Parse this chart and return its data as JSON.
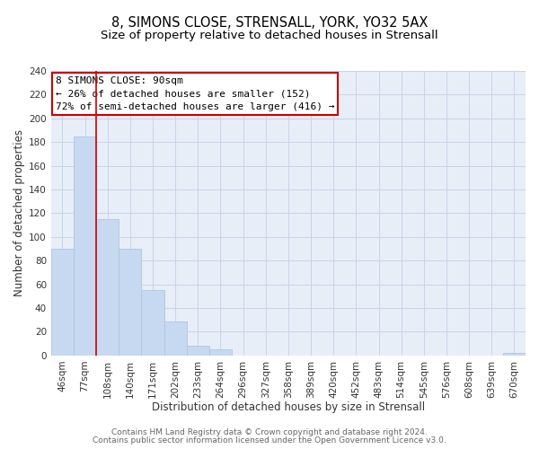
{
  "title": "8, SIMONS CLOSE, STRENSALL, YORK, YO32 5AX",
  "subtitle": "Size of property relative to detached houses in Strensall",
  "xlabel": "Distribution of detached houses by size in Strensall",
  "ylabel": "Number of detached properties",
  "categories": [
    "46sqm",
    "77sqm",
    "108sqm",
    "140sqm",
    "171sqm",
    "202sqm",
    "233sqm",
    "264sqm",
    "296sqm",
    "327sqm",
    "358sqm",
    "389sqm",
    "420sqm",
    "452sqm",
    "483sqm",
    "514sqm",
    "545sqm",
    "576sqm",
    "608sqm",
    "639sqm",
    "670sqm"
  ],
  "values": [
    90,
    185,
    115,
    90,
    55,
    29,
    8,
    5,
    0,
    0,
    0,
    0,
    0,
    0,
    0,
    0,
    0,
    0,
    0,
    0,
    2
  ],
  "bar_color": "#c6d9f0",
  "bar_edge_color": "#aec6e0",
  "vline_color": "#cc0000",
  "vline_x_index": 1.5,
  "ylim": [
    0,
    240
  ],
  "yticks": [
    0,
    20,
    40,
    60,
    80,
    100,
    120,
    140,
    160,
    180,
    200,
    220,
    240
  ],
  "annotation_box_text_line1": "8 SIMONS CLOSE: 90sqm",
  "annotation_box_text_line2": "← 26% of detached houses are smaller (152)",
  "annotation_box_text_line3": "72% of semi-detached houses are larger (416) →",
  "annotation_box_color": "#ffffff",
  "annotation_box_edge_color": "#cc0000",
  "footer_line1": "Contains HM Land Registry data © Crown copyright and database right 2024.",
  "footer_line2": "Contains public sector information licensed under the Open Government Licence v3.0.",
  "background_color": "#ffffff",
  "plot_bg_color": "#e8eef8",
  "grid_color": "#c8d4e8",
  "title_fontsize": 10.5,
  "subtitle_fontsize": 9.5,
  "axis_label_fontsize": 8.5,
  "tick_fontsize": 7.5,
  "annotation_fontsize": 8,
  "footer_fontsize": 6.5
}
